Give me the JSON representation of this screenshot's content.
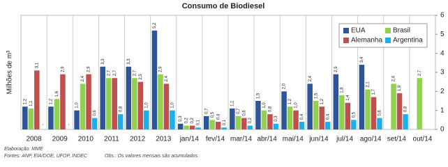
{
  "chart_data": {
    "type": "bar",
    "title": "Consumo de Biodiesel",
    "y_label": "Milhões de m³",
    "categories": [
      "2008",
      "2009",
      "2010",
      "2011",
      "2012",
      "2013",
      "jan/14",
      "fev/14",
      "mar/14",
      "abr/14",
      "mai/14",
      "jun/14",
      "jul/14",
      "ago/14",
      "set/14",
      "out/14"
    ],
    "series": [
      {
        "name": "EUA",
        "color": "#2e5597",
        "values": [
          1.2,
          1.2,
          1.0,
          3.3,
          3.3,
          5.2,
          0.3,
          0.7,
          1.1,
          1.5,
          2.0,
          2.4,
          2.9,
          3.4,
          null,
          null
        ],
        "value_labels": [
          "1,2",
          "1,2",
          "1,0",
          "3,3",
          "3,3",
          "5,2",
          "0,3",
          "0,7",
          "1,1",
          "1,5",
          "2,0",
          "2,4",
          "2,9",
          "3,4",
          null,
          null
        ]
      },
      {
        "name": "Brasil",
        "color": "#92d050",
        "values": [
          1.1,
          1.6,
          2.4,
          2.7,
          2.7,
          2.9,
          0.2,
          0.5,
          0.7,
          1.0,
          1.2,
          1.5,
          1.8,
          2.1,
          2.4,
          2.7
        ],
        "value_labels": [
          "1,1",
          "1,6",
          "2,4",
          "2,7",
          "2,7",
          "2,9",
          "0,2",
          "0,5",
          "0,7",
          "1,0",
          "1,2",
          "1,5",
          "1,8",
          "2,1",
          "2,4",
          "2,7"
        ]
      },
      {
        "name": "Alemanha",
        "color": "#c0504d",
        "values": [
          3.1,
          2.9,
          2.9,
          2.7,
          2.5,
          2.4,
          0.2,
          0.4,
          0.6,
          0.8,
          1.0,
          1.2,
          1.4,
          1.7,
          1.9,
          null
        ],
        "value_labels": [
          "3,1",
          "2,9",
          "2,9",
          "2,7",
          "2,5",
          "2,4",
          "0,2",
          "0,4",
          "0,6",
          "0,8",
          "1,0",
          "1,2",
          "1,4",
          "1,7",
          "1,9",
          null
        ]
      },
      {
        "name": "Argentina",
        "color": "#1eaee8",
        "values": [
          null,
          null,
          0.6,
          0.8,
          1.0,
          1.0,
          0.1,
          0.1,
          0.2,
          0.3,
          0.4,
          0.4,
          0.5,
          0.6,
          0.8,
          null
        ],
        "value_labels": [
          "-",
          "-",
          "0,6",
          "0,8",
          "1,0",
          "1,0",
          "0,1",
          "0,1",
          "0,2",
          "0,3",
          "0,4",
          "0,4",
          "0,5",
          "0,6",
          "0,8",
          null
        ]
      }
    ],
    "ylim": [
      0,
      6
    ],
    "yticks": [
      0,
      1,
      2,
      3,
      4,
      5,
      6
    ],
    "legend": "top-right",
    "notes": [
      "Elaboração: MME",
      "Fontes: ANP, EIA/DOE, UFOP, INDEC",
      "Obs.: Os valores mensais são acumulados."
    ]
  }
}
